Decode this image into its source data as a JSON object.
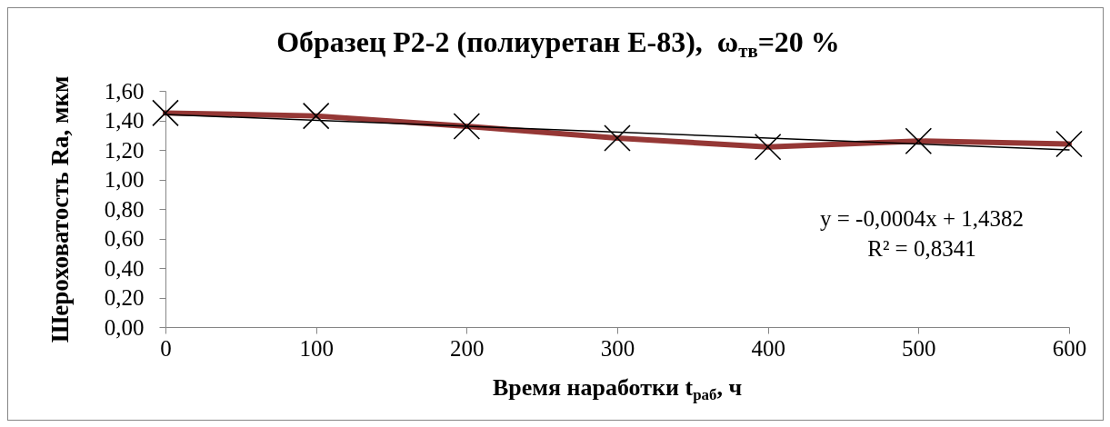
{
  "chart_data": {
    "type": "line",
    "title": "Образец Р2-2 (полиуретан Е-83),  ω$_{тв}$=20 %",
    "xlabel": "Время наработки t$_{раб}$, ч",
    "ylabel": "Шероховатость Ra, мкм",
    "annotations": [
      "y = -0,0004x + 1,4382",
      "R² = 0,8341"
    ],
    "x": [
      0,
      100,
      200,
      300,
      400,
      500,
      600
    ],
    "series": [
      {
        "color": "#953735",
        "values": [
          1.45,
          1.43,
          1.36,
          1.28,
          1.22,
          1.26,
          1.24
        ]
      },
      {
        "type": "line",
        "color": "#000000",
        "x": [
          0,
          600
        ],
        "values": [
          1.44,
          1.2
        ],
        "marker": "none"
      }
    ],
    "xlim": [
      0,
      600
    ],
    "xticks": [
      0,
      100,
      200,
      300,
      400,
      500,
      600
    ],
    "ylim": [
      0,
      1.6
    ],
    "yticks": [
      {
        "value": 0,
        "label": "0,00"
      },
      {
        "value": 0.2,
        "label": "0,20"
      },
      {
        "value": 0.4,
        "label": "0,40"
      },
      {
        "value": 0.6,
        "label": "0,60"
      },
      {
        "value": 0.8,
        "label": "0,80"
      },
      {
        "value": 1.0,
        "label": "1,00"
      },
      {
        "value": 1.2,
        "label": "1,20"
      },
      {
        "value": 1.4,
        "label": "1,40"
      },
      {
        "value": 1.6,
        "label": "1,60"
      }
    ],
    "marker": "cross"
  }
}
